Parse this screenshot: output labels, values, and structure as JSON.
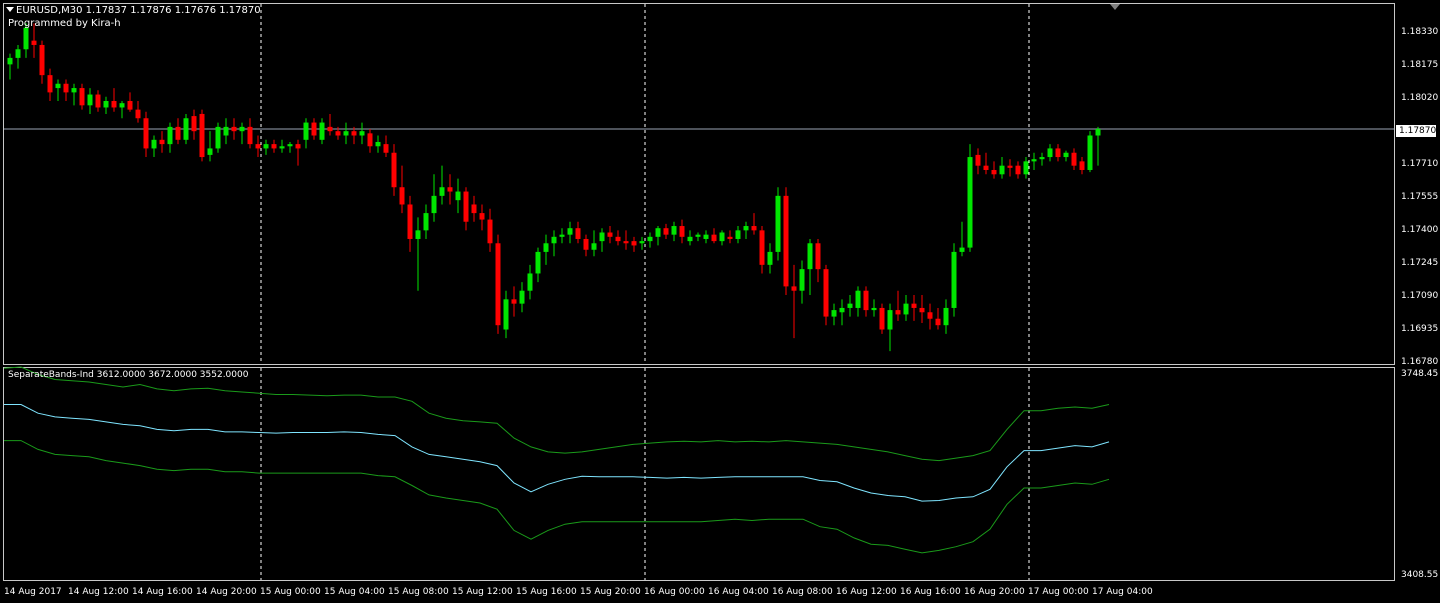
{
  "chart_header": {
    "symbol_info": "EURUSD,M30  1.17837 1.17876 1.17676 1.17870",
    "credit": "Programmed by Kira-h"
  },
  "indicator_header": "SeparateBands-Ind 3612.0000 3672.0000 3552.0000",
  "price_axis": {
    "labels": [
      "1.18330",
      "1.18175",
      "1.18020",
      "1.17710",
      "1.17555",
      "1.17400",
      "1.17245",
      "1.17090",
      "1.16935",
      "1.16780"
    ],
    "current_price": "1.17870"
  },
  "indicator_axis": {
    "max": "3748.45",
    "min": "3408.55"
  },
  "time_axis": [
    "14 Aug 2017",
    "14 Aug 12:00",
    "14 Aug 16:00",
    "14 Aug 20:00",
    "15 Aug 00:00",
    "15 Aug 04:00",
    "15 Aug 08:00",
    "15 Aug 12:00",
    "15 Aug 16:00",
    "15 Aug 20:00",
    "16 Aug 00:00",
    "16 Aug 04:00",
    "16 Aug 08:00",
    "16 Aug 12:00",
    "16 Aug 16:00",
    "16 Aug 20:00",
    "17 Aug 00:00",
    "17 Aug 04:00"
  ],
  "colors": {
    "bull": "#00e600",
    "bear": "#ff0000",
    "wick": "#c8c8c8",
    "mid_band": "#7fe5ff",
    "outer_band": "#1a9a1a",
    "grid": "#ffffff"
  },
  "chart_data": [
    {
      "type": "candlestick",
      "title": "EURUSD,M30",
      "ylim": [
        1.1678,
        1.1845
      ],
      "candles_ohlc": [
        [
          1.1817,
          1.1822,
          1.181,
          1.182
        ],
        [
          1.182,
          1.1826,
          1.1815,
          1.1824
        ],
        [
          1.1824,
          1.1836,
          1.182,
          1.1834
        ],
        [
          1.1828,
          1.1836,
          1.182,
          1.1826
        ],
        [
          1.1826,
          1.1828,
          1.1808,
          1.1812
        ],
        [
          1.1812,
          1.1815,
          1.18,
          1.1804
        ],
        [
          1.1806,
          1.181,
          1.18,
          1.1808
        ],
        [
          1.1808,
          1.181,
          1.18,
          1.1804
        ],
        [
          1.1804,
          1.1808,
          1.1798,
          1.1806
        ],
        [
          1.1806,
          1.1808,
          1.1796,
          1.1798
        ],
        [
          1.1798,
          1.1806,
          1.1794,
          1.1803
        ],
        [
          1.1803,
          1.1805,
          1.1795,
          1.1797
        ],
        [
          1.1797,
          1.1802,
          1.1794,
          1.18
        ],
        [
          1.18,
          1.1806,
          1.1795,
          1.1797
        ],
        [
          1.1797,
          1.18,
          1.1792,
          1.1799
        ],
        [
          1.18,
          1.1804,
          1.1795,
          1.1796
        ],
        [
          1.1796,
          1.18,
          1.179,
          1.1792
        ],
        [
          1.1792,
          1.1795,
          1.1774,
          1.1778
        ],
        [
          1.1778,
          1.1784,
          1.1774,
          1.1782
        ],
        [
          1.1782,
          1.1786,
          1.1776,
          1.178
        ],
        [
          1.178,
          1.179,
          1.1776,
          1.1788
        ],
        [
          1.1788,
          1.1792,
          1.178,
          1.1782
        ],
        [
          1.1782,
          1.1794,
          1.178,
          1.1792
        ],
        [
          1.1793,
          1.1796,
          1.1782,
          1.1786
        ],
        [
          1.1794,
          1.1796,
          1.1772,
          1.1774
        ],
        [
          1.1775,
          1.1786,
          1.1772,
          1.1778
        ],
        [
          1.1778,
          1.179,
          1.1776,
          1.1788
        ],
        [
          1.1784,
          1.1792,
          1.178,
          1.1788
        ],
        [
          1.1788,
          1.1792,
          1.1782,
          1.1786
        ],
        [
          1.1786,
          1.179,
          1.178,
          1.1788
        ],
        [
          1.1788,
          1.1792,
          1.1778,
          1.178
        ],
        [
          1.178,
          1.1784,
          1.1774,
          1.1778
        ],
        [
          1.1778,
          1.1782,
          1.1775,
          1.178
        ],
        [
          1.178,
          1.1782,
          1.1776,
          1.1778
        ],
        [
          1.1778,
          1.1782,
          1.1776,
          1.1779
        ],
        [
          1.1779,
          1.1781,
          1.1776,
          1.178
        ],
        [
          1.178,
          1.1782,
          1.177,
          1.1778
        ],
        [
          1.1782,
          1.1792,
          1.1778,
          1.179
        ],
        [
          1.179,
          1.1792,
          1.1782,
          1.1784
        ],
        [
          1.1782,
          1.1792,
          1.178,
          1.179
        ],
        [
          1.1788,
          1.1794,
          1.1784,
          1.1786
        ],
        [
          1.1786,
          1.1788,
          1.1782,
          1.1784
        ],
        [
          1.1784,
          1.179,
          1.178,
          1.1786
        ],
        [
          1.1786,
          1.1788,
          1.178,
          1.1784
        ],
        [
          1.1784,
          1.179,
          1.178,
          1.1786
        ],
        [
          1.1785,
          1.1787,
          1.1776,
          1.1779
        ],
        [
          1.1779,
          1.1784,
          1.1776,
          1.1781
        ],
        [
          1.178,
          1.1784,
          1.1774,
          1.1776
        ],
        [
          1.1776,
          1.178,
          1.1756,
          1.176
        ],
        [
          1.176,
          1.177,
          1.1748,
          1.1752
        ],
        [
          1.1752,
          1.1756,
          1.173,
          1.1736
        ],
        [
          1.1736,
          1.1746,
          1.1712,
          1.174
        ],
        [
          1.174,
          1.1752,
          1.1736,
          1.1748
        ],
        [
          1.1748,
          1.1766,
          1.1744,
          1.1756
        ],
        [
          1.1756,
          1.177,
          1.1752,
          1.176
        ],
        [
          1.176,
          1.1766,
          1.1752,
          1.1758
        ],
        [
          1.1754,
          1.1764,
          1.1748,
          1.1758
        ],
        [
          1.1758,
          1.176,
          1.174,
          1.1744
        ],
        [
          1.1752,
          1.1756,
          1.1744,
          1.1748
        ],
        [
          1.1748,
          1.1752,
          1.174,
          1.1745
        ],
        [
          1.1745,
          1.175,
          1.173,
          1.1734
        ],
        [
          1.1734,
          1.1738,
          1.1692,
          1.1696
        ],
        [
          1.1694,
          1.1712,
          1.169,
          1.1708
        ],
        [
          1.1708,
          1.1714,
          1.17,
          1.1706
        ],
        [
          1.1706,
          1.1716,
          1.1702,
          1.1712
        ],
        [
          1.1712,
          1.1724,
          1.1708,
          1.172
        ],
        [
          1.172,
          1.1732,
          1.1716,
          1.173
        ],
        [
          1.173,
          1.1738,
          1.1724,
          1.1734
        ],
        [
          1.1734,
          1.174,
          1.1728,
          1.1737
        ],
        [
          1.1737,
          1.1741,
          1.1734,
          1.1738
        ],
        [
          1.1738,
          1.1744,
          1.1734,
          1.1741
        ],
        [
          1.1741,
          1.1744,
          1.1734,
          1.1736
        ],
        [
          1.1736,
          1.1738,
          1.1728,
          1.1731
        ],
        [
          1.1731,
          1.174,
          1.1728,
          1.1734
        ],
        [
          1.1735,
          1.1741,
          1.173,
          1.1739
        ],
        [
          1.1739,
          1.1742,
          1.1734,
          1.1737
        ],
        [
          1.1737,
          1.174,
          1.1733,
          1.1735
        ],
        [
          1.1735,
          1.174,
          1.1731,
          1.1734
        ],
        [
          1.1735,
          1.1737,
          1.173,
          1.1733
        ],
        [
          1.1734,
          1.1737,
          1.1731,
          1.1735
        ],
        [
          1.1735,
          1.1739,
          1.1732,
          1.1737
        ],
        [
          1.1737,
          1.1742,
          1.1733,
          1.1741
        ],
        [
          1.1741,
          1.1743,
          1.1736,
          1.1738
        ],
        [
          1.1738,
          1.1744,
          1.1735,
          1.1742
        ],
        [
          1.1742,
          1.1745,
          1.1734,
          1.1737
        ],
        [
          1.1735,
          1.174,
          1.1733,
          1.1737
        ],
        [
          1.1737,
          1.1739,
          1.1735,
          1.1738
        ],
        [
          1.1736,
          1.174,
          1.1734,
          1.1738
        ],
        [
          1.1738,
          1.1741,
          1.1734,
          1.1735
        ],
        [
          1.1735,
          1.174,
          1.1733,
          1.1739
        ],
        [
          1.1737,
          1.174,
          1.1734,
          1.1736
        ],
        [
          1.1736,
          1.1742,
          1.1734,
          1.174
        ],
        [
          1.174,
          1.1744,
          1.1736,
          1.1742
        ],
        [
          1.1742,
          1.1748,
          1.1738,
          1.174
        ],
        [
          1.174,
          1.1742,
          1.172,
          1.1724
        ],
        [
          1.1724,
          1.1734,
          1.172,
          1.173
        ],
        [
          1.173,
          1.176,
          1.1726,
          1.1756
        ],
        [
          1.1756,
          1.176,
          1.171,
          1.1714
        ],
        [
          1.1714,
          1.1724,
          1.169,
          1.1712
        ],
        [
          1.1712,
          1.1726,
          1.1706,
          1.1722
        ],
        [
          1.1722,
          1.1736,
          1.171,
          1.1734
        ],
        [
          1.1734,
          1.1736,
          1.1716,
          1.1722
        ],
        [
          1.1722,
          1.1724,
          1.1696,
          1.17
        ],
        [
          1.17,
          1.1706,
          1.1696,
          1.1703
        ],
        [
          1.1702,
          1.1708,
          1.1696,
          1.1704
        ],
        [
          1.1704,
          1.171,
          1.17,
          1.1706
        ],
        [
          1.1704,
          1.1714,
          1.17,
          1.1712
        ],
        [
          1.1712,
          1.1714,
          1.17,
          1.1703
        ],
        [
          1.1703,
          1.1708,
          1.17,
          1.1704
        ],
        [
          1.1704,
          1.1706,
          1.1692,
          1.1694
        ],
        [
          1.1694,
          1.1706,
          1.1684,
          1.1703
        ],
        [
          1.1703,
          1.1712,
          1.1698,
          1.1701
        ],
        [
          1.1701,
          1.171,
          1.1698,
          1.1706
        ],
        [
          1.1706,
          1.171,
          1.1698,
          1.1704
        ],
        [
          1.1704,
          1.171,
          1.1697,
          1.1702
        ],
        [
          1.1702,
          1.1706,
          1.1694,
          1.1699
        ],
        [
          1.1699,
          1.1704,
          1.1694,
          1.1696
        ],
        [
          1.1696,
          1.1708,
          1.1692,
          1.1704
        ],
        [
          1.1704,
          1.1734,
          1.17,
          1.173
        ],
        [
          1.173,
          1.1744,
          1.1728,
          1.1732
        ],
        [
          1.1732,
          1.178,
          1.173,
          1.1774
        ],
        [
          1.1775,
          1.1778,
          1.1766,
          1.177
        ],
        [
          1.177,
          1.1776,
          1.1766,
          1.1768
        ],
        [
          1.1768,
          1.1772,
          1.1764,
          1.1766
        ],
        [
          1.1766,
          1.1774,
          1.1764,
          1.177
        ],
        [
          1.177,
          1.1773,
          1.1765,
          1.1769
        ],
        [
          1.177,
          1.1772,
          1.1764,
          1.1766
        ],
        [
          1.1766,
          1.1774,
          1.1764,
          1.1772
        ],
        [
          1.1772,
          1.1776,
          1.1768,
          1.1773
        ],
        [
          1.1773,
          1.1776,
          1.177,
          1.1774
        ],
        [
          1.1774,
          1.178,
          1.1772,
          1.1778
        ],
        [
          1.1778,
          1.178,
          1.1772,
          1.1774
        ],
        [
          1.1774,
          1.1777,
          1.1772,
          1.1776
        ],
        [
          1.1776,
          1.1778,
          1.1768,
          1.177
        ],
        [
          1.1772,
          1.1774,
          1.1766,
          1.1768
        ],
        [
          1.1768,
          1.1786,
          1.1767,
          1.1784
        ],
        [
          1.1784,
          1.1788,
          1.177,
          1.1787
        ]
      ]
    },
    {
      "type": "line",
      "title": "SeparateBands-Ind",
      "ylim": [
        3408.55,
        3748.45
      ],
      "series": [
        {
          "name": "3672.0000",
          "values": [
            3748,
            3750,
            3738,
            3730,
            3728,
            3726,
            3722,
            3718,
            3722,
            3715,
            3712,
            3715,
            3716,
            3712,
            3710,
            3708,
            3706,
            3706,
            3705,
            3704,
            3705,
            3705,
            3702,
            3702,
            3695,
            3676,
            3668,
            3664,
            3662,
            3660,
            3636,
            3622,
            3614,
            3612,
            3614,
            3618,
            3622,
            3626,
            3628,
            3630,
            3631,
            3630,
            3632,
            3630,
            3631,
            3630,
            3632,
            3630,
            3628,
            3626,
            3622,
            3618,
            3614,
            3608,
            3602,
            3600,
            3604,
            3608,
            3616,
            3650,
            3680,
            3680,
            3684,
            3686,
            3684,
            3690
          ]
        },
        {
          "name": "3612.0000",
          "values": [
            3690,
            3690,
            3676,
            3670,
            3668,
            3666,
            3662,
            3658,
            3656,
            3650,
            3648,
            3650,
            3650,
            3646,
            3646,
            3645,
            3644,
            3645,
            3645,
            3645,
            3646,
            3645,
            3642,
            3640,
            3622,
            3610,
            3606,
            3602,
            3598,
            3592,
            3564,
            3550,
            3562,
            3570,
            3575,
            3574,
            3574,
            3574,
            3573,
            3572,
            3573,
            3572,
            3573,
            3574,
            3574,
            3574,
            3574,
            3574,
            3568,
            3566,
            3556,
            3548,
            3544,
            3542,
            3535,
            3536,
            3540,
            3542,
            3554,
            3590,
            3616,
            3616,
            3620,
            3624,
            3622,
            3630
          ]
        },
        {
          "name": "3552.0000",
          "values": [
            3632,
            3632,
            3618,
            3610,
            3608,
            3606,
            3600,
            3596,
            3592,
            3586,
            3584,
            3586,
            3586,
            3582,
            3582,
            3580,
            3580,
            3580,
            3580,
            3580,
            3580,
            3580,
            3576,
            3574,
            3560,
            3545,
            3540,
            3536,
            3532,
            3522,
            3488,
            3474,
            3488,
            3498,
            3502,
            3502,
            3502,
            3502,
            3502,
            3502,
            3502,
            3502,
            3504,
            3506,
            3504,
            3506,
            3506,
            3506,
            3494,
            3490,
            3476,
            3466,
            3464,
            3458,
            3452,
            3456,
            3462,
            3470,
            3490,
            3530,
            3556,
            3556,
            3560,
            3564,
            3562,
            3570
          ]
        }
      ]
    }
  ]
}
